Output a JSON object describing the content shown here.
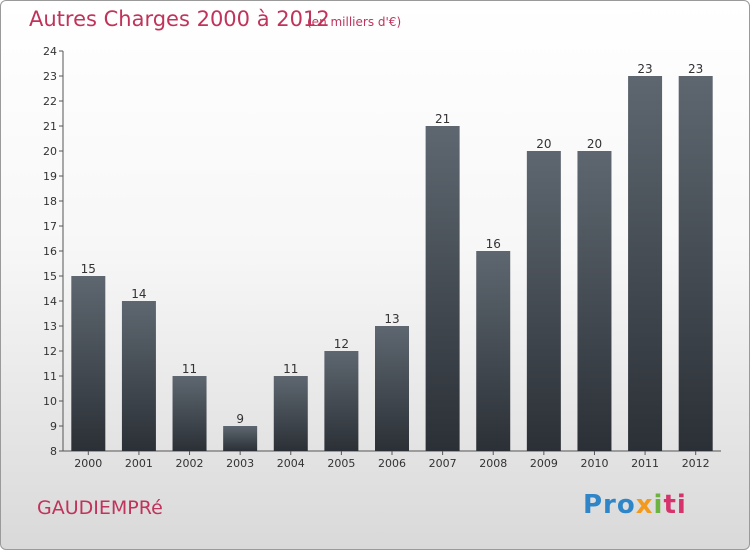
{
  "chart_data": {
    "type": "bar",
    "title": "Autres Charges 2000 à 2012",
    "subtitle": "(en milliers d'€)",
    "categories": [
      "2000",
      "2001",
      "2002",
      "2003",
      "2004",
      "2005",
      "2006",
      "2007",
      "2008",
      "2009",
      "2010",
      "2011",
      "2012"
    ],
    "values": [
      15,
      14,
      11,
      9,
      11,
      12,
      13,
      21,
      16,
      20,
      20,
      23,
      23
    ],
    "ylim": [
      8,
      24
    ],
    "yticks": [
      8,
      9,
      10,
      11,
      12,
      13,
      14,
      15,
      16,
      17,
      18,
      19,
      20,
      21,
      22,
      23,
      24
    ],
    "grid": false,
    "xlabel": "",
    "ylabel": "",
    "bar_color_top": "#5e6770",
    "bar_color_bottom": "#2b3036"
  },
  "footer": {
    "commune": "GAUDIEMPRé",
    "logo": {
      "p1": "Pro",
      "p2": "x",
      "p3": "i",
      "p4": "ti"
    }
  }
}
